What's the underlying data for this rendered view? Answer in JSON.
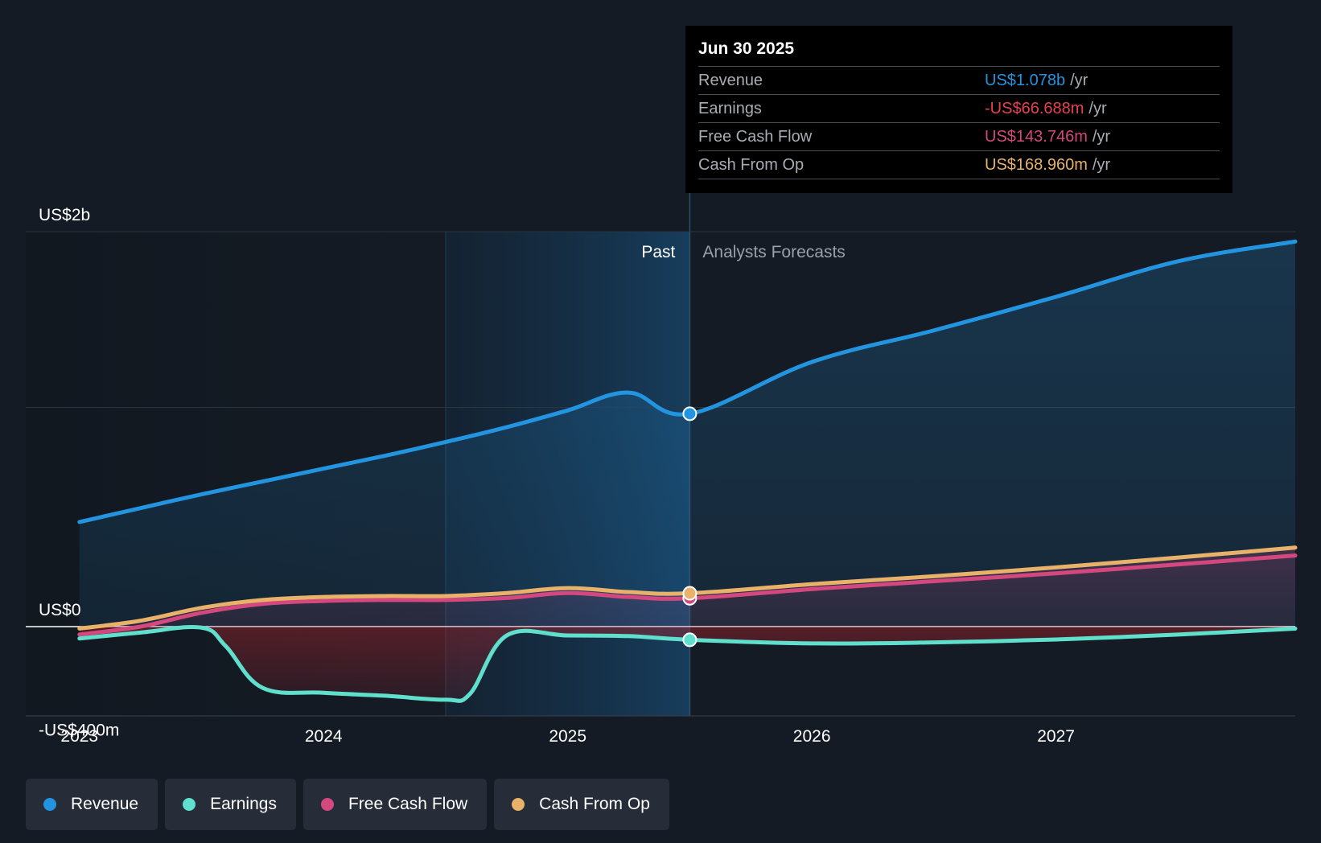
{
  "tooltip": {
    "date": "Jun 30 2025",
    "rows": [
      {
        "label": "Revenue",
        "value": "US$1.078b",
        "unit": "/yr",
        "color": "#2394df"
      },
      {
        "label": "Earnings",
        "value": "-US$66.688m",
        "unit": "/yr",
        "color": "#e64050"
      },
      {
        "label": "Free Cash Flow",
        "value": "US$143.746m",
        "unit": "/yr",
        "color": "#d3487f"
      },
      {
        "label": "Cash From Op",
        "value": "US$168.960m",
        "unit": "/yr",
        "color": "#e8b26a"
      }
    ]
  },
  "legend": [
    {
      "label": "Revenue",
      "color": "#2394df"
    },
    {
      "label": "Earnings",
      "color": "#5fe0cd"
    },
    {
      "label": "Free Cash Flow",
      "color": "#d3487f"
    },
    {
      "label": "Cash From Op",
      "color": "#e8b26a"
    }
  ],
  "chart_data": {
    "type": "line",
    "title": "",
    "past_label": "Past",
    "forecast_label": "Analysts Forecasts",
    "y_tick_labels": [
      {
        "value": 2000,
        "label": "US$2b"
      },
      {
        "value": 0,
        "label": "US$0"
      },
      {
        "value": -400,
        "label": "-US$400m"
      }
    ],
    "x_tick_labels": [
      {
        "value": 2023.0,
        "label": "2023"
      },
      {
        "value": 2024.0,
        "label": "2024"
      },
      {
        "value": 2025.0,
        "label": "2025"
      },
      {
        "value": 2026.0,
        "label": "2026"
      },
      {
        "value": 2027.0,
        "label": "2027"
      }
    ],
    "xlim": [
      2022.78,
      2027.98
    ],
    "ylim": [
      -450,
      2000
    ],
    "highlight_start": 2024.5,
    "divider_x": 2025.5,
    "gridlines": [
      2000,
      1110
    ],
    "series": [
      {
        "name": "Revenue",
        "color": "#2394df",
        "x": [
          2023.0,
          2023.25,
          2023.5,
          2023.75,
          2024.0,
          2024.25,
          2024.5,
          2024.75,
          2025.0,
          2025.25,
          2025.5,
          2026.0,
          2026.5,
          2027.0,
          2027.5,
          2027.98
        ],
        "y": [
          530,
          600,
          670,
          735,
          800,
          865,
          935,
          1010,
          1095,
          1185,
          1078,
          1340,
          1500,
          1670,
          1850,
          1950
        ]
      },
      {
        "name": "Earnings",
        "color": "#5fe0cd",
        "x": [
          2023.0,
          2023.25,
          2023.5,
          2023.6,
          2023.75,
          2024.0,
          2024.25,
          2024.5,
          2024.6,
          2024.75,
          2025.0,
          2025.25,
          2025.5,
          2026.0,
          2026.5,
          2027.0,
          2027.5,
          2027.98
        ],
        "y": [
          -60,
          -30,
          -5,
          -100,
          -310,
          -335,
          -350,
          -370,
          -340,
          -45,
          -45,
          -48,
          -66.688,
          -85,
          -80,
          -65,
          -40,
          -10
        ]
      },
      {
        "name": "Free Cash Flow",
        "color": "#d3487f",
        "x": [
          2023.0,
          2023.25,
          2023.5,
          2023.75,
          2024.0,
          2024.25,
          2024.5,
          2024.75,
          2025.0,
          2025.25,
          2025.5,
          2026.0,
          2026.5,
          2027.0,
          2027.5,
          2027.98
        ],
        "y": [
          -40,
          0,
          70,
          115,
          130,
          135,
          135,
          145,
          170,
          150,
          143.746,
          190,
          230,
          270,
          315,
          360
        ]
      },
      {
        "name": "Cash From Op",
        "color": "#e8b26a",
        "x": [
          2023.0,
          2023.25,
          2023.5,
          2023.75,
          2024.0,
          2024.25,
          2024.5,
          2024.75,
          2025.0,
          2025.25,
          2025.5,
          2026.0,
          2026.5,
          2027.0,
          2027.5,
          2027.98
        ],
        "y": [
          -10,
          30,
          95,
          135,
          150,
          155,
          155,
          170,
          195,
          175,
          168.96,
          215,
          255,
          300,
          350,
          400
        ]
      }
    ]
  }
}
